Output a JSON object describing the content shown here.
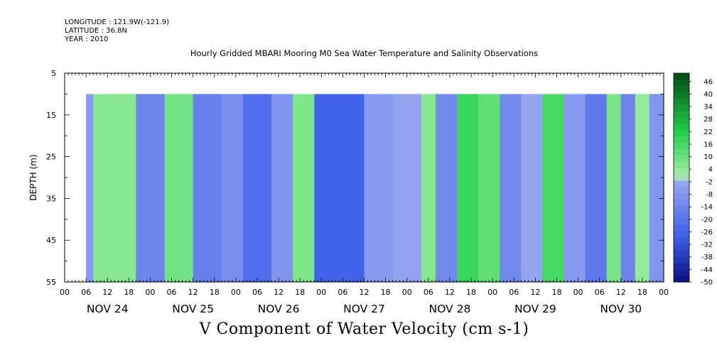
{
  "header": {
    "longitude": "LONGITUDE : 121.9W(-121.9)",
    "latitude": "LATITUDE : 36.8N",
    "year": "YEAR : 2010",
    "title": "Hourly Gridded MBARI Mooring M0 Sea Water Temperature and Salinity Observations"
  },
  "caption": "V Component of Water Velocity (cm s-1)",
  "chart_data": {
    "type": "heatmap",
    "title": "Hourly Gridded MBARI Mooring M0 Sea Water Temperature and Salinity Observations",
    "ylabel": "DEPTH (m)",
    "xlabel": "V Component of Water Velocity (cm s-1)",
    "x_range_hours": [
      0,
      168
    ],
    "data_start_hour": 6,
    "ylim": [
      5,
      55
    ],
    "y_inverted": true,
    "data_depth_range": [
      10,
      55
    ],
    "y_ticks": [
      5,
      15,
      25,
      35,
      45,
      55
    ],
    "x_hour_tick_labels": [
      "00",
      "06",
      "12",
      "18",
      "00",
      "06",
      "12",
      "18",
      "00",
      "06",
      "12",
      "18",
      "00",
      "06",
      "12",
      "18",
      "00",
      "06",
      "12",
      "18",
      "00",
      "06",
      "12",
      "18",
      "00",
      "06",
      "12",
      "18",
      "00"
    ],
    "x_day_labels": [
      "NOV 24",
      "NOV 25",
      "NOV 26",
      "NOV 27",
      "NOV 28",
      "NOV 29",
      "NOV 30"
    ],
    "colorbar_labels": [
      46,
      40,
      34,
      28,
      22,
      16,
      10,
      4,
      -2,
      -8,
      -14,
      -20,
      -26,
      -32,
      -38,
      -44,
      -50
    ],
    "colorbar_range": [
      -50,
      50
    ],
    "colorbar_step": 3,
    "colors": {
      "negative_deep": "#0a0a7a",
      "negative": "#3a5ee8",
      "near_zero_neg": "#9aa8f0",
      "near_zero_pos": "#a6f0a6",
      "positive": "#1ed04a",
      "positive_deep": "#064a14"
    },
    "time_segments": [
      {
        "start_hour": 6,
        "end_hour": 8,
        "value": -6
      },
      {
        "start_hour": 8,
        "end_hour": 20,
        "value": 6
      },
      {
        "start_hour": 20,
        "end_hour": 28,
        "value": -14
      },
      {
        "start_hour": 28,
        "end_hour": 36,
        "value": 9
      },
      {
        "start_hour": 36,
        "end_hour": 44,
        "value": -16
      },
      {
        "start_hour": 44,
        "end_hour": 50,
        "value": -10
      },
      {
        "start_hour": 50,
        "end_hour": 58,
        "value": -22
      },
      {
        "start_hour": 58,
        "end_hour": 64,
        "value": -8
      },
      {
        "start_hour": 64,
        "end_hour": 70,
        "value": 7
      },
      {
        "start_hour": 70,
        "end_hour": 84,
        "value": -26
      },
      {
        "start_hour": 84,
        "end_hour": 92,
        "value": -6
      },
      {
        "start_hour": 92,
        "end_hour": 100,
        "value": -3
      },
      {
        "start_hour": 100,
        "end_hour": 104,
        "value": 6
      },
      {
        "start_hour": 104,
        "end_hour": 110,
        "value": -12
      },
      {
        "start_hour": 110,
        "end_hour": 116,
        "value": 18
      },
      {
        "start_hour": 116,
        "end_hour": 122,
        "value": 12
      },
      {
        "start_hour": 122,
        "end_hour": 128,
        "value": -12
      },
      {
        "start_hour": 128,
        "end_hour": 134,
        "value": -2
      },
      {
        "start_hour": 134,
        "end_hour": 140,
        "value": 16
      },
      {
        "start_hour": 140,
        "end_hour": 146,
        "value": -6
      },
      {
        "start_hour": 146,
        "end_hour": 152,
        "value": -18
      },
      {
        "start_hour": 152,
        "end_hour": 156,
        "value": 8
      },
      {
        "start_hour": 156,
        "end_hour": 160,
        "value": -14
      },
      {
        "start_hour": 160,
        "end_hour": 164,
        "value": 4
      },
      {
        "start_hour": 164,
        "end_hour": 168,
        "value": -8
      }
    ]
  }
}
